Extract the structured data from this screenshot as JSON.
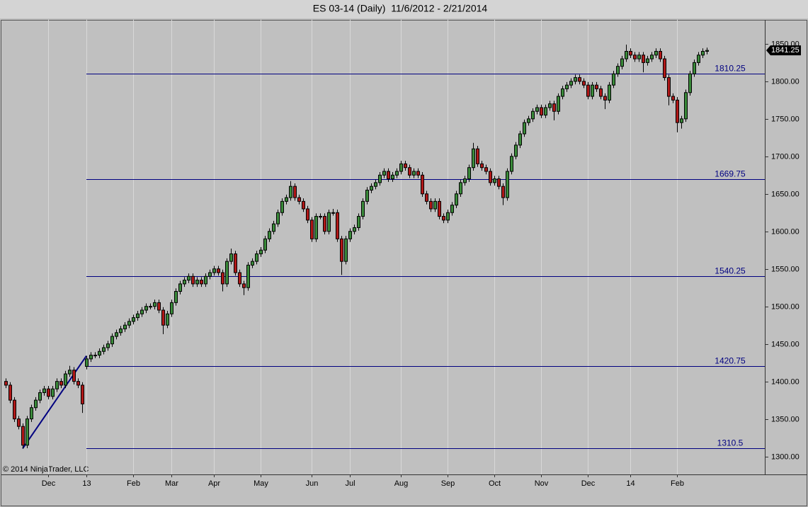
{
  "chart_data": {
    "type": "candlestick",
    "title": "ES 03-14 (Daily)  11/6/2012 - 2/21/2014",
    "copyright": "© 2014 NinjaTrader, LLC",
    "up_color": "#3a8a3a",
    "down_color": "#b01818",
    "level_color": "#000080",
    "ylim": [
      1276,
      1882
    ],
    "yticks": [
      {
        "value": 1300,
        "label": "1300.00"
      },
      {
        "value": 1350,
        "label": "1350.00"
      },
      {
        "value": 1400,
        "label": "1400.00"
      },
      {
        "value": 1450,
        "label": "1450.00"
      },
      {
        "value": 1500,
        "label": "1500.00"
      },
      {
        "value": 1550,
        "label": "1550.00"
      },
      {
        "value": 1600,
        "label": "1600.00"
      },
      {
        "value": 1650,
        "label": "1650.00"
      },
      {
        "value": 1700,
        "label": "1700.00"
      },
      {
        "value": 1750,
        "label": "1750.00"
      },
      {
        "value": 1800,
        "label": "1800.00"
      },
      {
        "value": 1850,
        "label": "1850.00"
      }
    ],
    "levels": [
      1810.25,
      1669.75,
      1540.25,
      1420.75,
      1310.5
    ],
    "last_price": 1841.25,
    "categories": [
      null,
      null,
      null,
      null,
      null,
      null,
      null,
      null,
      null,
      null,
      "Dec",
      null,
      null,
      null,
      null,
      null,
      null,
      null,
      null,
      "13",
      null,
      null,
      null,
      null,
      null,
      null,
      null,
      null,
      null,
      null,
      "Feb",
      null,
      null,
      null,
      null,
      null,
      null,
      null,
      null,
      "Mar",
      null,
      null,
      null,
      null,
      null,
      null,
      null,
      null,
      null,
      "Apr",
      null,
      null,
      null,
      null,
      null,
      null,
      null,
      null,
      null,
      null,
      "May",
      null,
      null,
      null,
      null,
      null,
      null,
      null,
      null,
      null,
      null,
      null,
      "Jun",
      null,
      null,
      null,
      null,
      null,
      null,
      null,
      null,
      "Jul",
      null,
      null,
      null,
      null,
      null,
      null,
      null,
      null,
      null,
      null,
      null,
      "Aug",
      null,
      null,
      null,
      null,
      null,
      null,
      null,
      null,
      null,
      null,
      "Sep",
      null,
      null,
      null,
      null,
      null,
      null,
      null,
      null,
      null,
      null,
      "Oct",
      null,
      null,
      null,
      null,
      null,
      null,
      null,
      null,
      null,
      null,
      "Nov",
      null,
      null,
      null,
      null,
      null,
      null,
      null,
      null,
      null,
      null,
      "Dec",
      null,
      null,
      null,
      null,
      null,
      null,
      null,
      null,
      null,
      "14",
      null,
      null,
      null,
      null,
      null,
      null,
      null,
      null,
      null,
      null,
      "Feb",
      null,
      null,
      null,
      null,
      null,
      null,
      null
    ],
    "open": [
      1400,
      1395,
      1375,
      1350,
      1340,
      1315,
      1350,
      1365,
      1375,
      1385,
      1390,
      1380,
      1390,
      1400,
      1395,
      1410,
      1415,
      1400,
      1395,
      1420,
      1430,
      1435,
      1435,
      1440,
      1445,
      1450,
      1460,
      1465,
      1470,
      1475,
      1480,
      1485,
      1490,
      1495,
      1500,
      1500,
      1505,
      1495,
      1475,
      1490,
      1505,
      1520,
      1530,
      1535,
      1540,
      1530,
      1535,
      1530,
      1540,
      1545,
      1550,
      1545,
      1530,
      1560,
      1570,
      1545,
      1530,
      1525,
      1555,
      1560,
      1570,
      1575,
      1590,
      1600,
      1610,
      1625,
      1640,
      1645,
      1660,
      1645,
      1640,
      1630,
      1615,
      1590,
      1620,
      1620,
      1600,
      1625,
      1625,
      1590,
      1560,
      1590,
      1600,
      1605,
      1620,
      1640,
      1655,
      1660,
      1665,
      1675,
      1680,
      1670,
      1675,
      1680,
      1690,
      1685,
      1675,
      1680,
      1675,
      1650,
      1640,
      1630,
      1640,
      1620,
      1615,
      1625,
      1635,
      1650,
      1665,
      1670,
      1685,
      1710,
      1690,
      1685,
      1680,
      1665,
      1670,
      1660,
      1645,
      1680,
      1700,
      1715,
      1730,
      1745,
      1750,
      1760,
      1765,
      1755,
      1765,
      1770,
      1760,
      1780,
      1790,
      1795,
      1800,
      1805,
      1800,
      1795,
      1780,
      1795,
      1790,
      1780,
      1775,
      1795,
      1810,
      1820,
      1830,
      1840,
      1835,
      1830,
      1835,
      1825,
      1830,
      1835,
      1840,
      1830,
      1805,
      1780,
      1775,
      1745,
      1750,
      1785,
      1810,
      1825,
      1835,
      1840
    ],
    "high": [
      1404,
      1399,
      1379,
      1354,
      1344,
      1354,
      1369,
      1379,
      1389,
      1394,
      1394,
      1394,
      1404,
      1404,
      1414,
      1420.75,
      1419,
      1404,
      1399,
      1434,
      1439,
      1439,
      1444,
      1449,
      1454,
      1464,
      1469,
      1474,
      1479,
      1484,
      1489,
      1494,
      1499,
      1504,
      1504,
      1509,
      1509,
      1499,
      1494,
      1509,
      1524,
      1534,
      1539,
      1544,
      1544,
      1539,
      1539,
      1544,
      1549,
      1554,
      1554,
      1549,
      1564,
      1577,
      1574,
      1549,
      1534,
      1559,
      1564,
      1574,
      1579,
      1594,
      1604,
      1614,
      1629,
      1644,
      1649,
      1667,
      1664,
      1649,
      1644,
      1634,
      1619,
      1624,
      1624,
      1624,
      1629,
      1630,
      1629,
      1594,
      1594,
      1604,
      1609,
      1624,
      1644,
      1659,
      1664,
      1669,
      1679,
      1684,
      1684,
      1679,
      1684,
      1694,
      1694,
      1689,
      1684,
      1684,
      1679,
      1654,
      1644,
      1644,
      1644,
      1624,
      1629,
      1639,
      1654,
      1669,
      1674,
      1689,
      1718,
      1714,
      1694,
      1689,
      1684,
      1674,
      1674,
      1664,
      1684,
      1704,
      1719,
      1734,
      1749,
      1754,
      1764,
      1769,
      1769,
      1769,
      1774,
      1774,
      1784,
      1794,
      1799,
      1804,
      1809,
      1809,
      1804,
      1799,
      1799,
      1799,
      1794,
      1784,
      1799,
      1814,
      1824,
      1834,
      1849,
      1844,
      1839,
      1839,
      1839,
      1834,
      1839,
      1844,
      1844,
      1834,
      1809,
      1784,
      1779,
      1754,
      1789,
      1814,
      1829,
      1839,
      1844,
      1845
    ],
    "low": [
      1391,
      1371,
      1346,
      1336,
      1310.5,
      1311,
      1346,
      1361,
      1371,
      1381,
      1376,
      1376,
      1386,
      1391,
      1391,
      1406,
      1396,
      1391,
      1358,
      1416,
      1426,
      1431,
      1431,
      1436,
      1441,
      1446,
      1456,
      1461,
      1466,
      1471,
      1476,
      1481,
      1486,
      1491,
      1496,
      1496,
      1491,
      1463,
      1471,
      1486,
      1501,
      1516,
      1526,
      1531,
      1526,
      1526,
      1526,
      1526,
      1536,
      1541,
      1541,
      1520,
      1526,
      1556,
      1541,
      1526,
      1515,
      1521,
      1551,
      1556,
      1566,
      1571,
      1586,
      1596,
      1606,
      1621,
      1636,
      1641,
      1641,
      1636,
      1626,
      1611,
      1586,
      1586,
      1616,
      1596,
      1596,
      1621,
      1586,
      1542,
      1556,
      1586,
      1596,
      1601,
      1616,
      1636,
      1651,
      1656,
      1661,
      1671,
      1666,
      1666,
      1671,
      1676,
      1681,
      1671,
      1671,
      1671,
      1646,
      1636,
      1626,
      1626,
      1616,
      1611,
      1611,
      1621,
      1631,
      1646,
      1661,
      1666,
      1681,
      1686,
      1681,
      1676,
      1661,
      1661,
      1656,
      1635,
      1641,
      1676,
      1696,
      1711,
      1726,
      1741,
      1746,
      1756,
      1751,
      1751,
      1761,
      1748,
      1756,
      1776,
      1786,
      1791,
      1796,
      1796,
      1791,
      1776,
      1776,
      1786,
      1776,
      1763,
      1771,
      1791,
      1806,
      1816,
      1826,
      1831,
      1826,
      1826,
      1812,
      1821,
      1826,
      1831,
      1826,
      1801,
      1768,
      1771,
      1732,
      1737,
      1746,
      1781,
      1806,
      1821,
      1831,
      1836
    ],
    "close": [
      1395,
      1375,
      1350,
      1340,
      1315,
      1350,
      1365,
      1375,
      1385,
      1390,
      1380,
      1390,
      1400,
      1395,
      1410,
      1415,
      1400,
      1395,
      1370,
      1430,
      1435,
      1435,
      1440,
      1445,
      1450,
      1460,
      1465,
      1470,
      1475,
      1480,
      1485,
      1490,
      1495,
      1500,
      1500,
      1505,
      1495,
      1475,
      1490,
      1505,
      1520,
      1530,
      1535,
      1540,
      1530,
      1535,
      1530,
      1540,
      1545,
      1550,
      1545,
      1530,
      1560,
      1570,
      1545,
      1530,
      1525,
      1555,
      1560,
      1570,
      1575,
      1590,
      1600,
      1610,
      1625,
      1640,
      1645,
      1660,
      1645,
      1640,
      1630,
      1615,
      1590,
      1620,
      1620,
      1600,
      1625,
      1625,
      1590,
      1560,
      1590,
      1600,
      1605,
      1620,
      1640,
      1655,
      1660,
      1665,
      1675,
      1680,
      1670,
      1675,
      1680,
      1690,
      1685,
      1675,
      1680,
      1675,
      1650,
      1640,
      1630,
      1640,
      1620,
      1615,
      1625,
      1635,
      1650,
      1665,
      1670,
      1685,
      1710,
      1690,
      1685,
      1680,
      1665,
      1670,
      1660,
      1645,
      1680,
      1700,
      1715,
      1730,
      1745,
      1750,
      1760,
      1765,
      1755,
      1765,
      1770,
      1760,
      1780,
      1790,
      1795,
      1800,
      1805,
      1800,
      1795,
      1780,
      1795,
      1790,
      1780,
      1775,
      1795,
      1810,
      1820,
      1830,
      1840,
      1835,
      1830,
      1835,
      1825,
      1830,
      1835,
      1840,
      1830,
      1805,
      1780,
      1775,
      1745,
      1750,
      1785,
      1810,
      1825,
      1835,
      1840,
      1841.25
    ]
  }
}
